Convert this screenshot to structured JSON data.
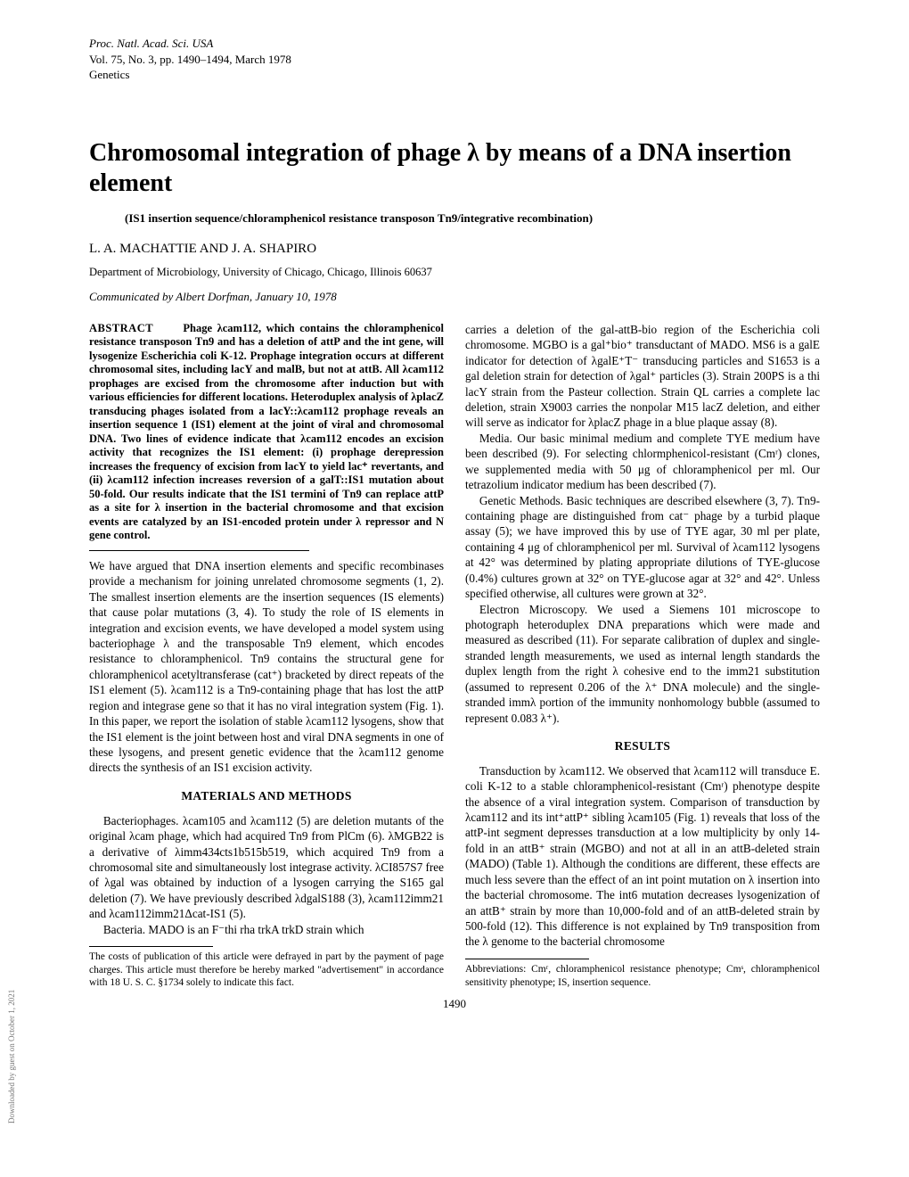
{
  "header": {
    "line1": "Proc. Natl. Acad. Sci. USA",
    "line2": "Vol. 75, No. 3, pp. 1490–1494, March 1978",
    "line3": "Genetics"
  },
  "title": "Chromosomal integration of phage λ by means of a DNA insertion element",
  "subtitle": "(IS1 insertion sequence/chloramphenicol resistance transposon Tn9/integrative recombination)",
  "authors": "L. A. MACHATTIE AND J. A. SHAPIRO",
  "affiliation": "Department of Microbiology, University of Chicago, Chicago, Illinois 60637",
  "communicated": "Communicated by Albert Dorfman, January 10, 1978",
  "abstract": {
    "label": "ABSTRACT",
    "text": "Phage λcam112, which contains the chloramphenicol resistance transposon Tn9 and has a deletion of attP and the int gene, will lysogenize Escherichia coli K-12. Prophage integration occurs at different chromosomal sites, including lacY and malB, but not at attB. All λcam112 prophages are excised from the chromosome after induction but with various efficiencies for different locations. Heteroduplex analysis of λplacZ transducing phages isolated from a lacY::λcam112 prophage reveals an insertion sequence 1 (IS1) element at the joint of viral and chromosomal DNA. Two lines of evidence indicate that λcam112 encodes an excision activity that recognizes the IS1 element: (i) prophage derepression increases the frequency of excision from lacY to yield lac⁺ revertants, and (ii) λcam112 infection increases reversion of a galT::IS1 mutation about 50-fold. Our results indicate that the IS1 termini of Tn9 can replace attP as a site for λ insertion in the bacterial chromosome and that excision events are catalyzed by an IS1-encoded protein under λ repressor and N gene control."
  },
  "col1": {
    "intro": "We have argued that DNA insertion elements and specific recombinases provide a mechanism for joining unrelated chromosome segments (1, 2). The smallest insertion elements are the insertion sequences (IS elements) that cause polar mutations (3, 4). To study the role of IS elements in integration and excision events, we have developed a model system using bacteriophage λ and the transposable Tn9 element, which encodes resistance to chloramphenicol. Tn9 contains the structural gene for chloramphenicol acetyltransferase (cat⁺) bracketed by direct repeats of the IS1 element (5). λcam112 is a Tn9-containing phage that has lost the attP region and integrase gene so that it has no viral integration system (Fig. 1). In this paper, we report the isolation of stable λcam112 lysogens, show that the IS1 element is the joint between host and viral DNA segments in one of these lysogens, and present genetic evidence that the λcam112 genome directs the synthesis of an IS1 excision activity.",
    "mm_head": "MATERIALS AND METHODS",
    "bacteriophages": "Bacteriophages. λcam105 and λcam112 (5) are deletion mutants of the original λcam phage, which had acquired Tn9 from PlCm (6). λMGB22 is a derivative of λimm434cts1b515b519, which acquired Tn9 from a chromosomal site and simultaneously lost integrase activity. λCI857S7 free of λgal was obtained by induction of a lysogen carrying the S165 gal deletion (7). We have previously described λdgalS188 (3), λcam112imm21 and λcam112imm21Δcat-IS1 (5).",
    "bacteria": "Bacteria. MADO is an F⁻thi rha trkA trkD strain which"
  },
  "col2": {
    "bacteria_cont": "carries a deletion of the gal-attB-bio region of the Escherichia coli chromosome. MGBO is a gal⁺bio⁺ transductant of MADO. MS6 is a galE indicator for detection of λgalE⁺T⁻ transducing particles and S1653 is a gal deletion strain for detection of λgal⁺ particles (3). Strain 200PS is a thi lacY strain from the Pasteur collection. Strain QL carries a complete lac deletion, strain X9003 carries the nonpolar M15 lacZ deletion, and either will serve as indicator for λplacZ phage in a blue plaque assay (8).",
    "media": "Media. Our basic minimal medium and complete TYE medium have been described (9). For selecting chlormphenicol-resistant (Cmʳ) clones, we supplemented media with 50 μg of chloramphenicol per ml. Our tetrazolium indicator medium has been described (7).",
    "genetic": "Genetic Methods. Basic techniques are described elsewhere (3, 7). Tn9-containing phage are distinguished from cat⁻ phage by a turbid plaque assay (5); we have improved this by use of TYE agar, 30 ml per plate, containing 4 μg of chloramphenicol per ml. Survival of λcam112 lysogens at 42° was determined by plating appropriate dilutions of TYE-glucose (0.4%) cultures grown at 32° on TYE-glucose agar at 32° and 42°. Unless specified otherwise, all cultures were grown at 32°.",
    "em": "Electron Microscopy. We used a Siemens 101 microscope to photograph heteroduplex DNA preparations which were made and measured as described (11). For separate calibration of duplex and single-stranded length measurements, we used as internal length standards the duplex length from the right λ cohesive end to the imm21 substitution (assumed to represent 0.206 of the λ⁺ DNA molecule) and the single-stranded immλ portion of the immunity nonhomology bubble (assumed to represent 0.083 λ⁺).",
    "results_head": "RESULTS",
    "transduction": "Transduction by λcam112. We observed that λcam112 will transduce E. coli K-12 to a stable chloramphenicol-resistant (Cmʳ) phenotype despite the absence of a viral integration system. Comparison of transduction by λcam112 and its int⁺attP⁺ sibling λcam105 (Fig. 1) reveals that loss of the attP-int segment depresses transduction at a low multiplicity by only 14-fold in an attB⁺ strain (MGBO) and not at all in an attB-deleted strain (MADO) (Table 1). Although the conditions are different, these effects are much less severe than the effect of an int point mutation on λ insertion into the bacterial chromosome. The int6 mutation decreases lysogenization of an attB⁺ strain by more than 10,000-fold and of an attB-deleted strain by 500-fold (12). This difference is not explained by Tn9 transposition from the λ genome to the bacterial chromosome"
  },
  "footnotes": {
    "left": "The costs of publication of this article were defrayed in part by the payment of page charges. This article must therefore be hereby marked \"advertisement\" in accordance with 18 U. S. C. §1734 solely to indicate this fact.",
    "right": "Abbreviations: Cmʳ, chloramphenicol resistance phenotype; Cmˢ, chloramphenicol sensitivity phenotype; IS, insertion sequence."
  },
  "pagenum": "1490",
  "sidetext": "Downloaded by guest on October 1, 2021"
}
